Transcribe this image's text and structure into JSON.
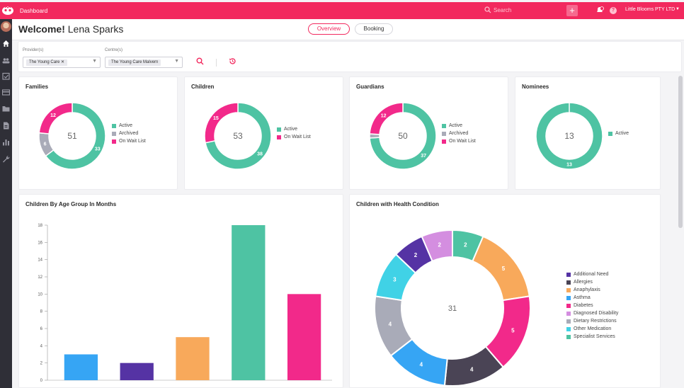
{
  "app": {
    "title": "Dashboard"
  },
  "topbar": {
    "search_placeholder": "Search",
    "add_label": "+",
    "help_label": "?",
    "organization": "Little Blooms PTY LTD",
    "brand_color": "#f2295e"
  },
  "header": {
    "welcome": "Welcome!",
    "user_name": "Lena Sparks",
    "tabs": [
      {
        "label": "Overview",
        "active": true
      },
      {
        "label": "Booking",
        "active": false
      }
    ]
  },
  "filters": {
    "provider": {
      "label": "Provider(s)",
      "value": "The Young Care"
    },
    "centre": {
      "label": "Centre(s)",
      "value": "The Young Care Malvern"
    }
  },
  "sidebar": {
    "icons": [
      "home-icon",
      "people-icon",
      "checklist-icon",
      "card-icon",
      "folder-icon",
      "document-icon",
      "bar-chart-icon",
      "wrench-icon"
    ]
  },
  "colors": {
    "active": "#4ec3a3",
    "archived": "#a9abb8",
    "wait_list": "#f2298a"
  },
  "chart_data": [
    {
      "type": "pie",
      "title": "Families",
      "total": "51",
      "series": [
        {
          "name": "Active",
          "value": 33,
          "color": "#4ec3a3"
        },
        {
          "name": "Archived",
          "value": 6,
          "color": "#a9abb8"
        },
        {
          "name": "On Wait List",
          "value": 12,
          "color": "#f2298a"
        }
      ]
    },
    {
      "type": "pie",
      "title": "Children",
      "total": "53",
      "series": [
        {
          "name": "Active",
          "value": 38,
          "color": "#4ec3a3"
        },
        {
          "name": "On Wait List",
          "value": 15,
          "color": "#f2298a"
        }
      ]
    },
    {
      "type": "pie",
      "title": "Guardians",
      "total": "50",
      "series": [
        {
          "name": "Active",
          "value": 37,
          "color": "#4ec3a3"
        },
        {
          "name": "Archived",
          "value": 1,
          "color": "#a9abb8"
        },
        {
          "name": "On Wait List",
          "value": 12,
          "color": "#f2298a"
        }
      ]
    },
    {
      "type": "pie",
      "title": "Nominees",
      "total": "13",
      "series": [
        {
          "name": "Active",
          "value": 13,
          "color": "#4ec3a3"
        }
      ]
    },
    {
      "type": "bar",
      "title": "Children By Age Group In Months",
      "ylim": [
        0,
        18
      ],
      "yticks": [
        0,
        2,
        4,
        6,
        8,
        10,
        12,
        14,
        16,
        18
      ],
      "values": [
        3,
        2,
        5,
        18,
        10
      ],
      "colors": [
        "#36a5f4",
        "#5533a4",
        "#f8a95b",
        "#4ec3a3",
        "#f2298a"
      ]
    },
    {
      "type": "pie",
      "title": "Children with Health Condition",
      "total": "31",
      "series": [
        {
          "name": "Specialist Services",
          "value": 2,
          "color": "#4ec3a3"
        },
        {
          "name": "Anaphylaxis",
          "value": 5,
          "color": "#f8a95b"
        },
        {
          "name": "Diabetes",
          "value": 5,
          "color": "#f2298a"
        },
        {
          "name": "Allergies",
          "value": 4,
          "color": "#4a4455"
        },
        {
          "name": "Asthma",
          "value": 4,
          "color": "#36a5f4"
        },
        {
          "name": "Dietary Restrictions",
          "value": 4,
          "color": "#a9abb8"
        },
        {
          "name": "Other Medication",
          "value": 3,
          "color": "#40d2e6"
        },
        {
          "name": "Additional Need",
          "value": 2,
          "color": "#5533a4"
        },
        {
          "name": "Diagnosed Disability",
          "value": 2,
          "color": "#d48ee0"
        }
      ],
      "legend": [
        {
          "name": "Additional Need",
          "color": "#5533a4"
        },
        {
          "name": "Allergies",
          "color": "#4a4455"
        },
        {
          "name": "Anaphylaxis",
          "color": "#f8a95b"
        },
        {
          "name": "Asthma",
          "color": "#36a5f4"
        },
        {
          "name": "Diabetes",
          "color": "#f2298a"
        },
        {
          "name": "Diagnosed Disability",
          "color": "#d48ee0"
        },
        {
          "name": "Dietary Restrictions",
          "color": "#a9abb8"
        },
        {
          "name": "Other Medication",
          "color": "#40d2e6"
        },
        {
          "name": "Specialist Services",
          "color": "#4ec3a3"
        }
      ]
    }
  ]
}
